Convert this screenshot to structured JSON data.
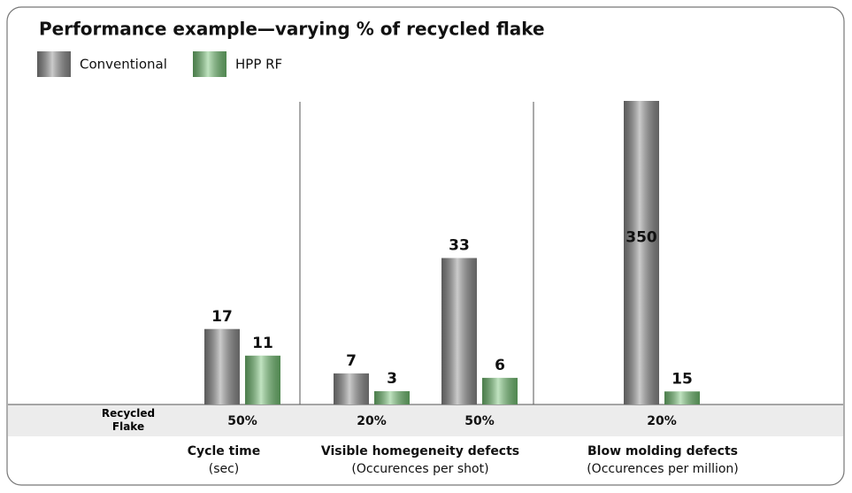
{
  "title": "Performance example—varying % of recycled flake",
  "legend": [
    {
      "name": "Conventional",
      "color": "#8c8c8c"
    },
    {
      "name": "HPP RF",
      "color": "#74c274"
    }
  ],
  "row_label": "Recycled Flake",
  "chart_data": [
    {
      "type": "bar",
      "title": "Cycle time",
      "subtitle": "(sec)",
      "categories": [
        "50%"
      ],
      "series": [
        {
          "values": [
            17
          ]
        },
        {
          "values": [
            11
          ]
        }
      ],
      "ylim": [
        0,
        68.4
      ]
    },
    {
      "type": "bar",
      "title": "Visible homegeneity defects",
      "subtitle": "(Occurences per shot)",
      "categories": [
        "20%",
        "50%"
      ],
      "series": [
        {
          "values": [
            7,
            33
          ]
        },
        {
          "values": [
            3,
            6
          ]
        }
      ],
      "ylim": [
        0,
        68.4
      ]
    },
    {
      "type": "bar",
      "title": "Blow molding defects",
      "subtitle": "(Occurences per million)",
      "categories": [
        "20%"
      ],
      "series": [
        {
          "values": [
            350
          ]
        },
        {
          "values": [
            15
          ]
        }
      ],
      "ylim": [
        0,
        350
      ]
    }
  ]
}
